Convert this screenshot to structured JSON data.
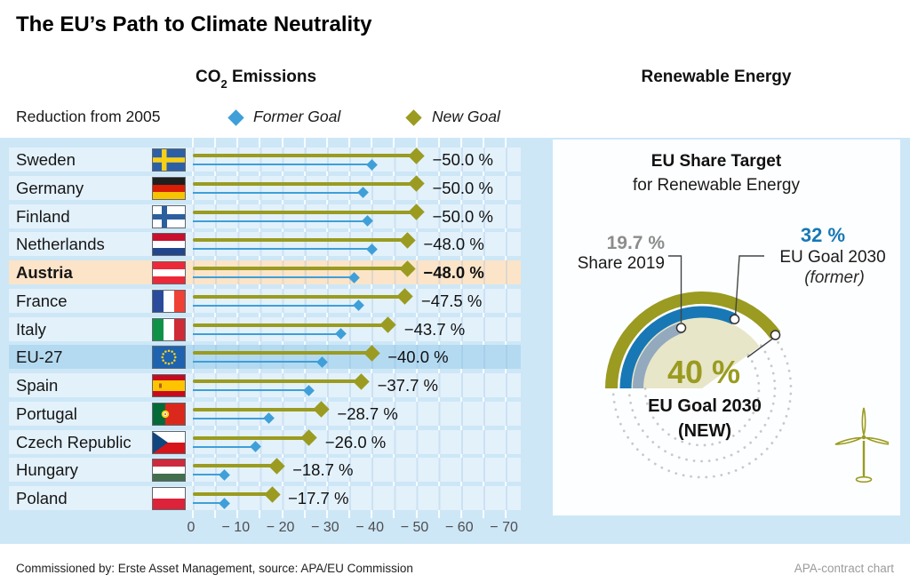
{
  "page": {
    "title": "The EU’s Path to Climate Neutrality",
    "footer_left": "Commissioned by: Erste Asset Management, source: APA/EU Commission",
    "footer_right": "APA-contract chart"
  },
  "co2_section": {
    "header_pre": "CO",
    "header_sub": "2",
    "header_post": " Emissions",
    "legend_caption": "Reduction from 2005",
    "legend_former": "Former Goal",
    "legend_new": "New Goal"
  },
  "renewables_section": {
    "header": "Renewable Energy",
    "panel_title": "EU Share Target",
    "panel_subtitle": "for Renewable Energy",
    "share_value": "19.7 %",
    "share_label": "Share 2019",
    "former_value": "32 %",
    "former_label": "EU Goal 2030",
    "former_note": "(former)",
    "new_value": "40 %",
    "new_label_1": "EU Goal 2030",
    "new_label_2": "(NEW)"
  },
  "colors": {
    "new_goal_olive": "#9a9b20",
    "former_goal_blue": "#3f9fd8",
    "gauge_former_blue": "#1778b5",
    "gauge_share_gray": "#93a9be",
    "gauge_wedge_beige": "#e8e6c8",
    "band_background": "#cde7f7",
    "row_background": "#e3f1fb",
    "row_austria": "#fce4c9",
    "row_eu27": "#b4daf1",
    "axis_text": "#4d4d4d"
  },
  "chart_data": [
    {
      "type": "bar",
      "style": "horizontal dumbbell / lollipop, two markers per country",
      "title": "CO2 Emissions",
      "subtitle": "Reduction from 2005 (%)",
      "categories": [
        "Sweden",
        "Germany",
        "Finland",
        "Netherlands",
        "Austria",
        "France",
        "Italy",
        "EU-27",
        "Spain",
        "Portugal",
        "Czech Republic",
        "Hungary",
        "Poland"
      ],
      "flags": [
        "se",
        "de",
        "fi",
        "nl",
        "at",
        "fr",
        "it",
        "eu",
        "es",
        "pt",
        "cz",
        "hu",
        "pl"
      ],
      "series": [
        {
          "name": "Former Goal",
          "color": "#3f9fd8",
          "values": [
            -40,
            -38,
            -39,
            -40,
            -36,
            -37,
            -33,
            -29,
            -26,
            -17,
            -14,
            -7,
            -7
          ]
        },
        {
          "name": "New Goal",
          "color": "#9a9b20",
          "values": [
            -50,
            -50,
            -50,
            -48,
            -48,
            -47.5,
            -43.7,
            -40,
            -37.7,
            -28.7,
            -26,
            -18.7,
            -17.7
          ]
        }
      ],
      "value_labels": [
        "−50.0 %",
        "−50.0 %",
        "−50.0 %",
        "−48.0 %",
        "−48.0 %",
        "−47.5 %",
        "−43.7 %",
        "−40.0 %",
        "−37.7 %",
        "−28.7 %",
        "−26.0 %",
        "−18.7 %",
        "−17.7 %"
      ],
      "xlim": [
        0,
        -70
      ],
      "x_ticks": [
        0,
        -10,
        -20,
        -30,
        -40,
        -50,
        -60,
        -70
      ],
      "x_tick_labels": [
        "0",
        "− 10",
        "− 20",
        "− 30",
        "− 40",
        "− 50",
        "− 60",
        "− 70"
      ],
      "highlighted_category": "Austria",
      "highlight_secondary": "EU-27",
      "grid": true,
      "legend_position": "top"
    },
    {
      "type": "pie",
      "style": "gauge: arcs start at left (9 o'clock) sweeping clockwise, 100 % = full circle; remainder shown as dotted circles",
      "title": "EU Share Target for Renewable Energy",
      "slices": [
        {
          "label": "Share 2019",
          "value": 19.7,
          "display": "19.7 %",
          "color": "#93a9be"
        },
        {
          "label": "EU Goal 2030 (former)",
          "value": 32,
          "display": "32 %",
          "color": "#1778b5"
        },
        {
          "label": "EU Goal 2030 (NEW)",
          "value": 40,
          "display": "40 %",
          "color": "#9a9b20"
        }
      ]
    }
  ]
}
